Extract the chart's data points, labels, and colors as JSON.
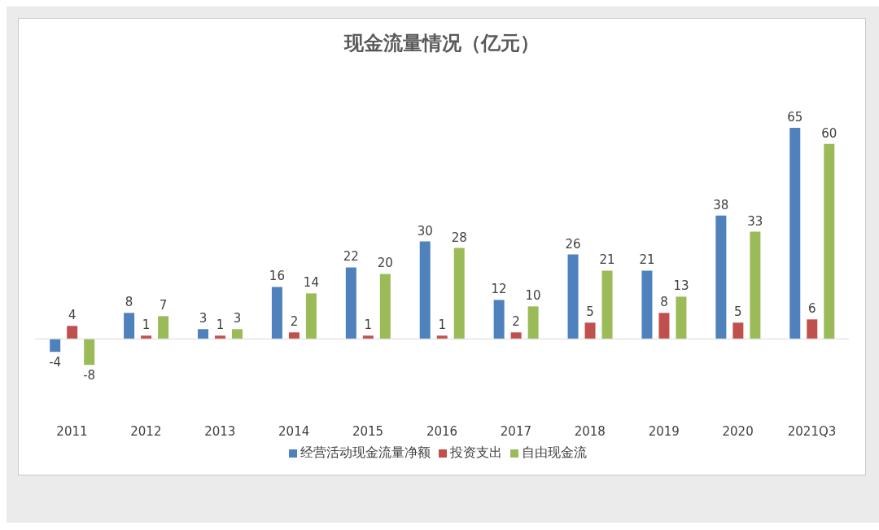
{
  "chart_data": {
    "type": "bar",
    "title": "现金流量情况（亿元）",
    "categories": [
      "2011",
      "2012",
      "2013",
      "2014",
      "2015",
      "2016",
      "2017",
      "2018",
      "2019",
      "2020",
      "2021Q3"
    ],
    "series": [
      {
        "name": "经营活动现金流量净额",
        "color": "#4f81bd",
        "values": [
          -4,
          8,
          3,
          16,
          22,
          30,
          12,
          26,
          21,
          38,
          65
        ]
      },
      {
        "name": "投资支出",
        "color": "#c0504d",
        "values": [
          4,
          1,
          1,
          2,
          1,
          1,
          2,
          5,
          8,
          5,
          6
        ]
      },
      {
        "name": "自由现金流",
        "color": "#9bbb59",
        "values": [
          -8,
          7,
          3,
          14,
          20,
          28,
          10,
          21,
          13,
          33,
          60
        ]
      }
    ],
    "data_labels": true,
    "legend": "bottom"
  }
}
